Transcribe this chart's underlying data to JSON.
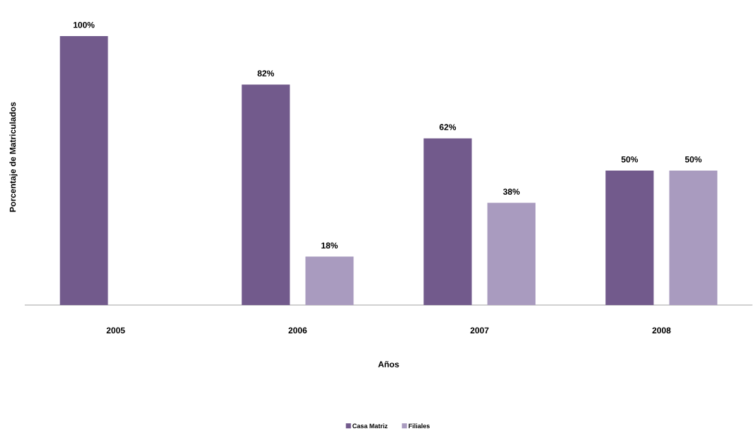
{
  "chart_data": {
    "type": "bar",
    "xlabel": "Años",
    "ylabel": "Porcentaje de Matriculados",
    "categories": [
      "2005",
      "2006",
      "2007",
      "2008"
    ],
    "series": [
      {
        "name": "Casa Matriz",
        "color": "#725a8c",
        "values": [
          100,
          82,
          62,
          50
        ],
        "value_labels": [
          "100%",
          "82%",
          "62%",
          "50%"
        ]
      },
      {
        "name": "Filiales",
        "color": "#a99bbf",
        "values": [
          null,
          18,
          38,
          50
        ],
        "value_labels": [
          null,
          "18%",
          "38%",
          "50%"
        ]
      }
    ],
    "tick_labels": "x",
    "legend": "bottom"
  }
}
